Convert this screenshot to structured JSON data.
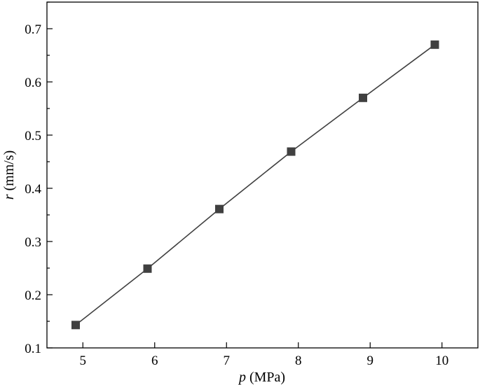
{
  "chart_data": {
    "type": "line",
    "title": "",
    "xlabel_var": "p",
    "xlabel_unit": " (MPa)",
    "ylabel_var": "r",
    "ylabel_unit": " (mm/s)",
    "xlim": [
      4.5,
      10.5
    ],
    "ylim": [
      0.1,
      0.75
    ],
    "xticks": [
      "5",
      "6",
      "7",
      "8",
      "9",
      "10"
    ],
    "yticks": [
      "0.1",
      "0.2",
      "0.3",
      "0.4",
      "0.5",
      "0.6",
      "0.7"
    ],
    "xtick_values": [
      5,
      6,
      7,
      8,
      9,
      10
    ],
    "ytick_values": [
      0.1,
      0.2,
      0.3,
      0.4,
      0.5,
      0.6,
      0.7
    ],
    "grid": false,
    "marker": "square",
    "color": "#404040",
    "series": [
      {
        "x": [
          4.9,
          5.9,
          6.9,
          7.9,
          8.9,
          9.9
        ],
        "y": [
          0.143,
          0.249,
          0.361,
          0.469,
          0.57,
          0.67
        ]
      }
    ]
  }
}
